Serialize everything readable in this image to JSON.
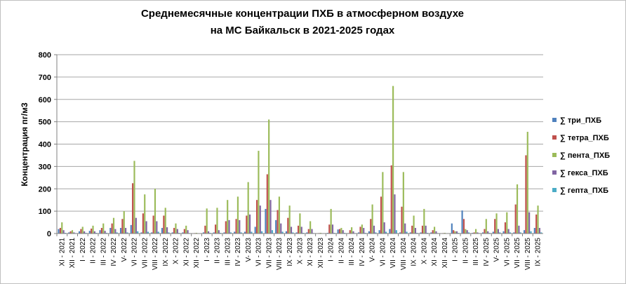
{
  "chart_data": {
    "type": "bar",
    "title_line1": "Среднемесячные концентрации ПХБ в атмосферном воздухе",
    "title_line2": "на МС Байкальск в 2021-2025 годах",
    "xlabel": "",
    "ylabel": "Концентрация пг/м3",
    "ylim": [
      0,
      800
    ],
    "yticks": [
      "0",
      "100",
      "200",
      "300",
      "400",
      "500",
      "600",
      "700",
      "800"
    ],
    "grid": true,
    "legend_position": "right",
    "categories": [
      "XI - 2021",
      "XII - 2021",
      "I - 2022",
      "II - 2022",
      "III - 2022",
      "IV - 2022",
      "V- 2022",
      "VI - 2022",
      "VII - 2022",
      "VIII - 2022",
      "IX - 2022",
      "X - 2022",
      "XI - 2022",
      "XII - 2022",
      "I - 2023",
      "II - 2023",
      "III - 2023",
      "IV - 2023",
      "V- 2023",
      "VI - 2023",
      "VII - 2023",
      "VIII - 2023",
      "IX - 2023",
      "X - 2023",
      "XI - 2023",
      "XII - 2023",
      "I - 2024",
      "II - 2024",
      "III - 2024",
      "IV - 2024",
      "V- 2024",
      "VI - 2024",
      "VII - 2024",
      "VIII - 2024",
      "IX - 2024",
      "X - 2024",
      "XI - 2024",
      "XII - 2024",
      "I - 2025",
      "II - 2025",
      "III - 2025",
      "IV - 2025",
      "V- 2025",
      "VI - 2025",
      "VII - 2025",
      "VIII - 2025",
      "IX - 2025"
    ],
    "series": [
      {
        "name": "∑ три_ПХБ",
        "color": "#4f81bd",
        "values": [
          20,
          5,
          10,
          12,
          15,
          25,
          25,
          38,
          5,
          5,
          25,
          5,
          5,
          1,
          5,
          5,
          5,
          8,
          8,
          30,
          110,
          60,
          10,
          5,
          5,
          1,
          3,
          18,
          2,
          5,
          10,
          15,
          20,
          5,
          5,
          5,
          5,
          1,
          45,
          103,
          3,
          5,
          8,
          10,
          5,
          15,
          25
        ]
      },
      {
        "name": "∑ тетра_ПХБ",
        "color": "#c0504d",
        "values": [
          25,
          10,
          20,
          22,
          25,
          45,
          65,
          225,
          90,
          80,
          80,
          25,
          20,
          2,
          35,
          40,
          55,
          65,
          80,
          150,
          265,
          105,
          70,
          35,
          20,
          2,
          40,
          20,
          15,
          30,
          65,
          165,
          305,
          120,
          35,
          35,
          15,
          2,
          15,
          65,
          5,
          20,
          65,
          50,
          130,
          350,
          85
        ]
      },
      {
        "name": "∑ пента_ПХБ",
        "color": "#9bbb59",
        "values": [
          50,
          15,
          30,
          35,
          45,
          70,
          100,
          325,
          175,
          200,
          115,
          45,
          35,
          3,
          112,
          115,
          150,
          165,
          230,
          370,
          510,
          165,
          125,
          90,
          55,
          3,
          110,
          25,
          28,
          40,
          130,
          275,
          660,
          275,
          80,
          110,
          30,
          3,
          10,
          20,
          20,
          65,
          90,
          95,
          220,
          455,
          125
        ]
      },
      {
        "name": "∑ гекса_ПХБ",
        "color": "#8064a2",
        "values": [
          15,
          5,
          10,
          10,
          12,
          20,
          25,
          70,
          55,
          55,
          28,
          20,
          15,
          1,
          10,
          15,
          60,
          60,
          85,
          125,
          150,
          45,
          30,
          30,
          20,
          1,
          40,
          15,
          10,
          25,
          35,
          50,
          175,
          45,
          25,
          35,
          10,
          1,
          10,
          15,
          5,
          10,
          20,
          20,
          35,
          95,
          25
        ]
      },
      {
        "name": "∑ гепта_ПХБ",
        "color": "#4bacc6",
        "values": [
          3,
          2,
          3,
          3,
          3,
          5,
          5,
          10,
          8,
          8,
          5,
          3,
          2,
          1,
          3,
          3,
          5,
          5,
          8,
          10,
          15,
          8,
          5,
          3,
          2,
          1,
          3,
          3,
          2,
          3,
          5,
          8,
          15,
          8,
          3,
          3,
          2,
          1,
          3,
          5,
          2,
          3,
          5,
          5,
          5,
          10,
          5
        ]
      }
    ]
  }
}
